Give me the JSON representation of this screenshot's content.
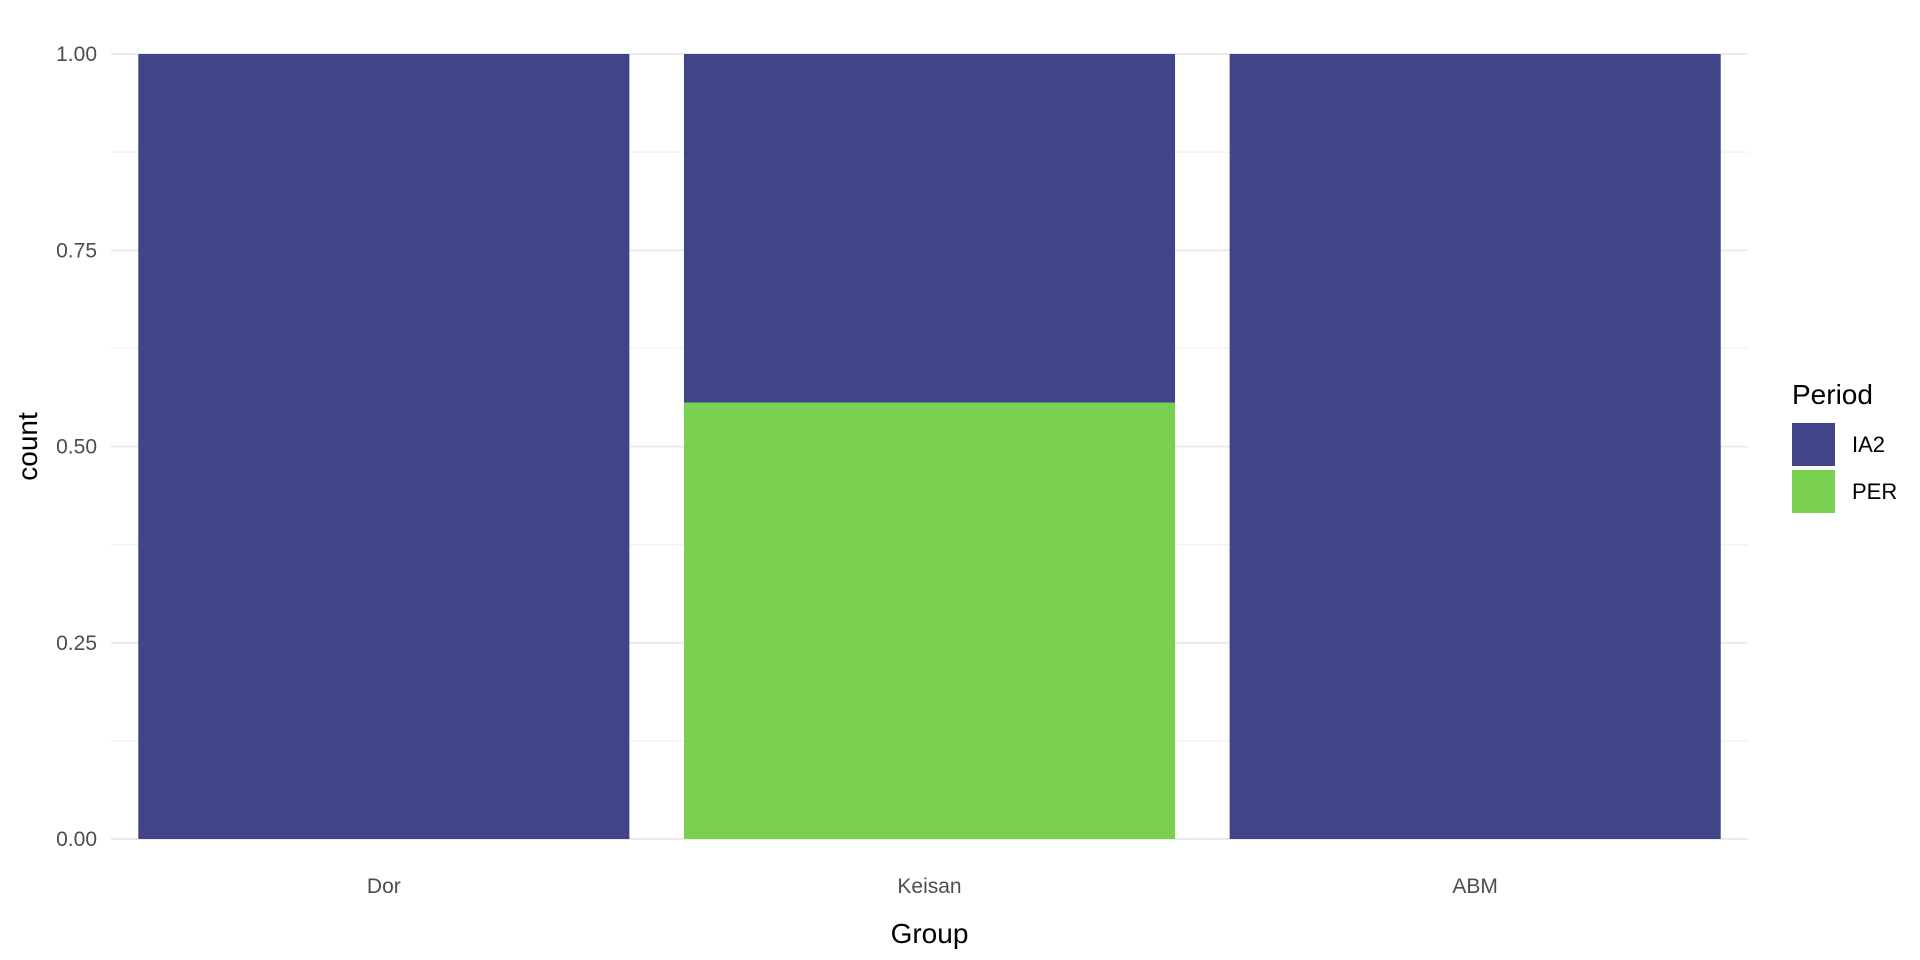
{
  "chart_data": {
    "type": "bar",
    "stacked": true,
    "categories": [
      "Dor",
      "Keisan",
      "ABM"
    ],
    "series": [
      {
        "name": "PER",
        "values": [
          0.0,
          0.556,
          0.0
        ],
        "color": "#7AD151"
      },
      {
        "name": "IA2",
        "values": [
          1.0,
          0.444,
          1.0
        ],
        "color": "#414487"
      }
    ],
    "xlabel": "Group",
    "ylabel": "count",
    "ylim": [
      0,
      1
    ],
    "yticks": [
      "0.00",
      "0.25",
      "0.50",
      "0.75",
      "1.00"
    ],
    "grid": true,
    "legend": {
      "title": "Period",
      "position": "right",
      "items": [
        {
          "label": "IA2",
          "color": "#414487"
        },
        {
          "label": "PER",
          "color": "#7AD151"
        }
      ]
    },
    "colors": {
      "grid_major": "#ebebeb",
      "grid_minor": "#f3f3f3"
    }
  }
}
